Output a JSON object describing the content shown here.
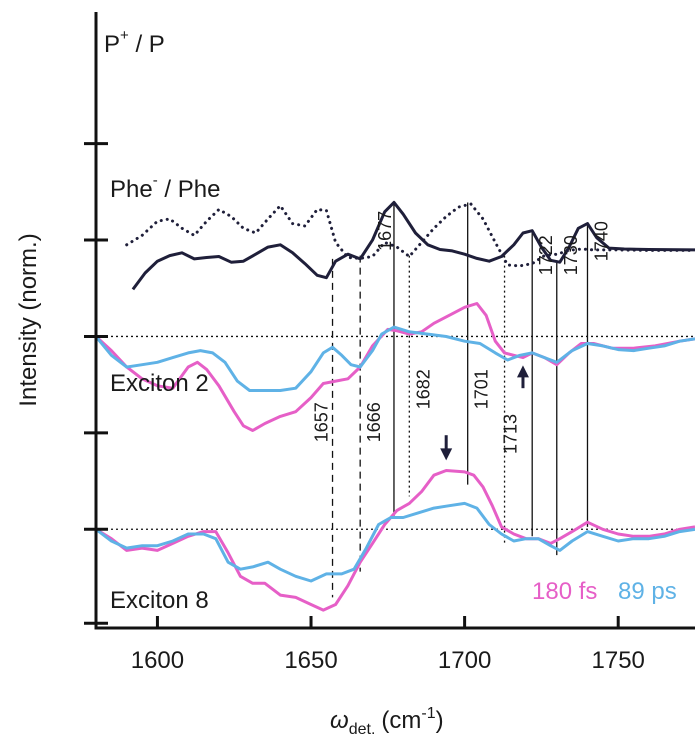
{
  "chart_data": {
    "type": "line",
    "ylabel": "Intensity (norm.)",
    "xlabel": {
      "symbol": "ω",
      "subscript": "det.",
      "unit_open": "(cm",
      "unit_sup": "-1",
      "unit_close": ")"
    },
    "xlim": [
      1580,
      1775
    ],
    "ylim": [
      -6.2,
      6.9
    ],
    "xticks": [
      1600,
      1650,
      1700,
      1750
    ],
    "yticks": [
      -6.1,
      -4.1,
      -2.05,
      0,
      2.05,
      4.1
    ],
    "zero_lines": [
      0,
      -4.1
    ],
    "panel_labels": {
      "pp": {
        "main": "P",
        "sup": "+",
        "rest": " / P"
      },
      "phe": {
        "main": "Phe",
        "sup": "-",
        "rest": " / Phe"
      },
      "exc2": "Exciton 2",
      "exc8": "Exciton 8"
    },
    "legend": [
      {
        "name": "180 fs",
        "color": "#e65fc7"
      },
      {
        "name": "89 ps",
        "color": "#5fb2e6"
      }
    ],
    "annotations": [
      {
        "x": 1657,
        "label": "1657",
        "style": "dash",
        "y_top": 1.65,
        "y_bottom": -5.55
      },
      {
        "x": 1666,
        "label": "1666",
        "style": "dash",
        "y_top": 1.72,
        "y_bottom": -5.0
      },
      {
        "x": 1677,
        "label": "1677",
        "style": "solid",
        "y_top": 2.85,
        "y_bottom": -3.85
      },
      {
        "x": 1682,
        "label": "1682",
        "style": "dot",
        "y_top": 1.72,
        "y_bottom": -3.4
      },
      {
        "x": 1701,
        "label": "1701",
        "style": "solid",
        "y_top": 2.85,
        "y_bottom": -3.15
      },
      {
        "x": 1713,
        "label": "1713",
        "style": "dot",
        "y_top": 1.72,
        "y_bottom": -4.4
      },
      {
        "x": 1722,
        "label": "1722",
        "style": "solid",
        "y_top": 2.25,
        "y_bottom": -4.25
      },
      {
        "x": 1730,
        "label": "1730",
        "style": "solid",
        "y_top": 1.6,
        "y_bottom": -4.65
      },
      {
        "x": 1740,
        "label": "1740",
        "style": "solid",
        "y_top": 2.4,
        "y_bottom": -4.05
      }
    ],
    "arrows": [
      {
        "x": 1719,
        "y_from": -1.1,
        "y_to": -0.7,
        "direction": "up"
      },
      {
        "x": 1694,
        "y_from": -2.1,
        "y_to": -2.55,
        "direction": "down"
      }
    ],
    "series": [
      {
        "name": "P+/P",
        "color": "#1f1f3a",
        "style": "dotted",
        "x": [
          1590,
          1595,
          1600,
          1604,
          1608,
          1612,
          1616,
          1620,
          1624,
          1628,
          1632,
          1636,
          1640,
          1644,
          1648,
          1652,
          1655,
          1658,
          1662,
          1666,
          1670,
          1674,
          1678,
          1682,
          1686,
          1690,
          1694,
          1698,
          1702,
          1706,
          1710,
          1714,
          1718,
          1722,
          1726,
          1730,
          1734,
          1738,
          1742,
          1750,
          1760,
          1775
        ],
        "values": [
          1.95,
          2.15,
          2.45,
          2.5,
          2.3,
          2.15,
          2.45,
          2.7,
          2.55,
          2.3,
          2.2,
          2.5,
          2.78,
          2.4,
          2.35,
          2.7,
          2.68,
          2.0,
          1.68,
          1.66,
          1.7,
          2.0,
          1.9,
          1.7,
          2.0,
          2.3,
          2.55,
          2.75,
          2.82,
          2.5,
          2.0,
          1.52,
          1.5,
          1.55,
          1.72,
          1.75,
          1.83,
          1.86,
          1.84,
          1.84,
          1.83,
          1.83
        ]
      },
      {
        "name": "Phe-/Phe",
        "color": "#1f1f3a",
        "style": "solid",
        "x": [
          1592,
          1596,
          1600,
          1604,
          1608,
          1612,
          1616,
          1620,
          1624,
          1628,
          1632,
          1636,
          1640,
          1644,
          1648,
          1652,
          1655,
          1658,
          1662,
          1666,
          1670,
          1674,
          1677,
          1680,
          1684,
          1688,
          1692,
          1696,
          1700,
          1704,
          1708,
          1712,
          1716,
          1719,
          1722,
          1725,
          1728,
          1731,
          1734,
          1737,
          1740,
          1743,
          1747,
          1752,
          1760,
          1775
        ],
        "values": [
          1.0,
          1.35,
          1.6,
          1.72,
          1.78,
          1.65,
          1.68,
          1.7,
          1.58,
          1.6,
          1.75,
          1.9,
          1.95,
          1.78,
          1.55,
          1.3,
          1.25,
          1.6,
          1.75,
          1.65,
          2.05,
          2.65,
          2.85,
          2.6,
          2.2,
          1.95,
          1.85,
          1.82,
          1.75,
          1.66,
          1.6,
          1.7,
          1.95,
          2.2,
          2.25,
          1.9,
          1.62,
          1.58,
          1.9,
          2.3,
          2.4,
          2.1,
          1.88,
          1.86,
          1.85,
          1.84
        ]
      },
      {
        "name": "Exciton 2 – 180 fs",
        "color": "#e65fc7",
        "style": "solid",
        "x": [
          1580,
          1585,
          1590,
          1595,
          1600,
          1605,
          1610,
          1613,
          1616,
          1620,
          1625,
          1628,
          1631,
          1635,
          1640,
          1645,
          1650,
          1654,
          1658,
          1662,
          1666,
          1670,
          1675,
          1678,
          1682,
          1686,
          1690,
          1695,
          1700,
          1704,
          1707,
          1710,
          1713,
          1716,
          1719,
          1722,
          1726,
          1730,
          1734,
          1738,
          1742,
          1748,
          1755,
          1762,
          1770,
          1775
        ],
        "values": [
          0.0,
          -0.3,
          -0.65,
          -0.9,
          -1.05,
          -1.1,
          -0.65,
          -0.55,
          -0.7,
          -1.05,
          -1.6,
          -1.9,
          -2.0,
          -1.85,
          -1.7,
          -1.6,
          -1.3,
          -1.0,
          -0.95,
          -0.9,
          -0.65,
          -0.2,
          0.15,
          0.12,
          0.05,
          0.1,
          0.28,
          0.45,
          0.62,
          0.7,
          0.45,
          -0.1,
          -0.35,
          -0.4,
          -0.45,
          -0.35,
          -0.45,
          -0.6,
          -0.35,
          -0.15,
          -0.15,
          -0.25,
          -0.25,
          -0.2,
          -0.1,
          -0.05
        ]
      },
      {
        "name": "Exciton 2 – 89 ps",
        "color": "#5fb2e6",
        "style": "solid",
        "x": [
          1580,
          1585,
          1590,
          1595,
          1600,
          1605,
          1610,
          1614,
          1618,
          1622,
          1626,
          1630,
          1635,
          1640,
          1645,
          1650,
          1654,
          1657,
          1660,
          1663,
          1666,
          1670,
          1673,
          1677,
          1682,
          1688,
          1694,
          1700,
          1705,
          1710,
          1714,
          1718,
          1722,
          1726,
          1730,
          1735,
          1740,
          1745,
          1750,
          1755,
          1760,
          1765,
          1770,
          1775
        ],
        "values": [
          0.0,
          -0.4,
          -0.65,
          -0.6,
          -0.55,
          -0.45,
          -0.35,
          -0.3,
          -0.35,
          -0.55,
          -0.95,
          -1.15,
          -1.15,
          -1.15,
          -1.1,
          -0.75,
          -0.35,
          -0.23,
          -0.4,
          -0.6,
          -0.65,
          -0.3,
          0.05,
          0.2,
          0.1,
          0.05,
          0.0,
          -0.1,
          -0.15,
          -0.35,
          -0.5,
          -0.4,
          -0.35,
          -0.45,
          -0.55,
          -0.3,
          -0.15,
          -0.2,
          -0.28,
          -0.3,
          -0.25,
          -0.2,
          -0.1,
          -0.05
        ]
      },
      {
        "name": "Exciton 8 – 180 fs",
        "color": "#e65fc7",
        "style": "solid",
        "x": [
          1580,
          1585,
          1590,
          1595,
          1600,
          1605,
          1610,
          1615,
          1619,
          1623,
          1627,
          1631,
          1635,
          1640,
          1645,
          1650,
          1654,
          1658,
          1662,
          1666,
          1670,
          1674,
          1678,
          1682,
          1686,
          1690,
          1694,
          1700,
          1703,
          1706,
          1709,
          1712,
          1716,
          1720,
          1724,
          1728,
          1731,
          1735,
          1740,
          1745,
          1750,
          1755,
          1760,
          1765,
          1770,
          1775
        ],
        "values": [
          -4.1,
          -4.3,
          -4.55,
          -4.5,
          -4.55,
          -4.4,
          -4.25,
          -4.15,
          -4.15,
          -4.6,
          -5.1,
          -5.25,
          -5.25,
          -5.5,
          -5.55,
          -5.7,
          -5.82,
          -5.7,
          -5.3,
          -4.8,
          -4.4,
          -4.0,
          -3.7,
          -3.55,
          -3.3,
          -2.95,
          -2.85,
          -2.88,
          -2.95,
          -3.2,
          -3.6,
          -4.05,
          -4.2,
          -4.3,
          -4.3,
          -4.4,
          -4.3,
          -4.15,
          -3.95,
          -4.1,
          -4.2,
          -4.25,
          -4.25,
          -4.2,
          -4.1,
          -4.05
        ]
      },
      {
        "name": "Exciton 8 – 89 ps",
        "color": "#5fb2e6",
        "style": "solid",
        "x": [
          1580,
          1585,
          1590,
          1595,
          1600,
          1605,
          1610,
          1615,
          1619,
          1623,
          1627,
          1631,
          1636,
          1640,
          1645,
          1650,
          1655,
          1660,
          1664,
          1668,
          1672,
          1676,
          1680,
          1685,
          1690,
          1695,
          1700,
          1704,
          1708,
          1712,
          1716,
          1720,
          1724,
          1728,
          1731,
          1735,
          1740,
          1745,
          1750,
          1755,
          1760,
          1765,
          1770,
          1775
        ],
        "values": [
          -4.1,
          -4.35,
          -4.5,
          -4.45,
          -4.45,
          -4.35,
          -4.2,
          -4.2,
          -4.3,
          -4.8,
          -4.95,
          -4.9,
          -4.8,
          -4.95,
          -5.1,
          -5.2,
          -5.05,
          -5.05,
          -4.95,
          -4.5,
          -4.0,
          -3.85,
          -3.85,
          -3.75,
          -3.65,
          -3.6,
          -3.55,
          -3.65,
          -4.0,
          -4.2,
          -4.35,
          -4.3,
          -4.3,
          -4.45,
          -4.55,
          -4.35,
          -4.15,
          -4.25,
          -4.35,
          -4.3,
          -4.3,
          -4.25,
          -4.15,
          -4.1
        ]
      }
    ]
  }
}
